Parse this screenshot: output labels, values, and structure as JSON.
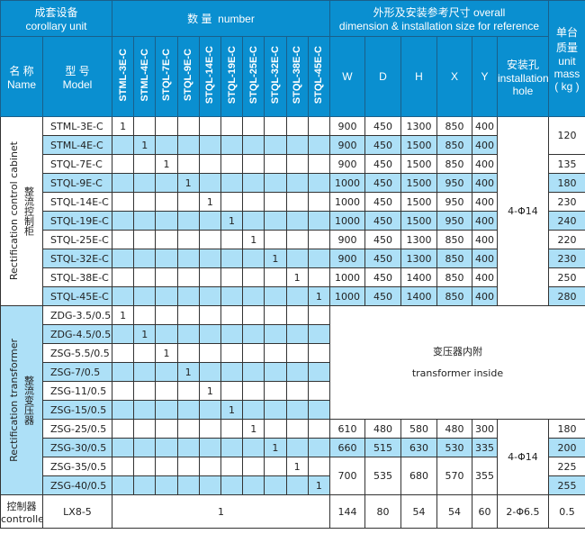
{
  "header": {
    "unit_zh": "成套设备",
    "unit_en": "corollary unit",
    "number_zh": "数 量",
    "number_en": "number",
    "dim_line1": "外形及安装参考尺寸 overall",
    "dim_line2": "dimension & installation size for reference",
    "mass_zh1": "单台",
    "mass_zh2": "质量",
    "mass_en1": "unit",
    "mass_en2": "mass",
    "mass_unit": "( kg )",
    "name_zh": "名 称",
    "name_en": "Name",
    "model_zh": "型 号",
    "model_en": "Model",
    "qty_cols": [
      "STML-3E-C",
      "STML-4E-C",
      "STQL-7E-C",
      "STQL-9E-C",
      "STQL-14E-C",
      "STQL-19E-C",
      "STQL-25E-C",
      "STQL-32E-C",
      "STQL-38E-C",
      "STQL-45E-C"
    ],
    "dim_cols": [
      "W",
      "D",
      "H",
      "X",
      "Y"
    ],
    "hole_zh": "安装孔",
    "hole_en1": "installation",
    "hole_en2": "hole"
  },
  "cabinet": {
    "name_en": "Rectification control cabinet",
    "name_zh": "整流控制柜",
    "hole": "4-Φ14",
    "rows": [
      {
        "model": "STML-3E-C",
        "qty": "1",
        "dims": [
          "900",
          "450",
          "1300",
          "850",
          "400"
        ]
      },
      {
        "model": "STML-4E-C",
        "qty": "1",
        "dims": [
          "900",
          "450",
          "1500",
          "850",
          "400"
        ]
      },
      {
        "model": "STQL-7E-C",
        "qty": "1",
        "dims": [
          "900",
          "450",
          "1500",
          "850",
          "400"
        ]
      },
      {
        "model": "STQL-9E-C",
        "qty": "1",
        "dims": [
          "1000",
          "450",
          "1500",
          "950",
          "400"
        ]
      },
      {
        "model": "STQL-14E-C",
        "qty": "1",
        "dims": [
          "1000",
          "450",
          "1500",
          "950",
          "400"
        ]
      },
      {
        "model": "STQL-19E-C",
        "qty": "1",
        "dims": [
          "1000",
          "450",
          "1500",
          "950",
          "400"
        ]
      },
      {
        "model": "STQL-25E-C",
        "qty": "1",
        "dims": [
          "900",
          "450",
          "1300",
          "850",
          "400"
        ]
      },
      {
        "model": "STQL-32E-C",
        "qty": "1",
        "dims": [
          "900",
          "450",
          "1300",
          "850",
          "400"
        ]
      },
      {
        "model": "STQL-38E-C",
        "qty": "1",
        "dims": [
          "1000",
          "450",
          "1400",
          "850",
          "400"
        ]
      },
      {
        "model": "STQL-45E-C",
        "qty": "1",
        "dims": [
          "1000",
          "450",
          "1400",
          "850",
          "400"
        ]
      }
    ],
    "mass": [
      "120",
      "135",
      "180",
      "230",
      "240",
      "220",
      "230",
      "250",
      "280"
    ]
  },
  "transformer": {
    "name_en": "Rectification transformer",
    "name_zh": "整流变压器",
    "note_zh": "变压器内附",
    "note_en": "transformer inside",
    "hole": "4-Φ14",
    "models": [
      "ZDG-3.5/0.5",
      "ZDG-4.5/0.5",
      "ZSG-5.5/0.5",
      "ZSG-7/0.5",
      "ZSG-11/0.5",
      "ZSG-15/0.5",
      "ZSG-25/0.5",
      "ZSG-30/0.5",
      "ZSG-35/0.5",
      "ZSG-40/0.5"
    ],
    "qty": "1",
    "dims": [
      [
        "610",
        "480",
        "580",
        "480",
        "300"
      ],
      [
        "660",
        "515",
        "630",
        "530",
        "335"
      ],
      [
        "700",
        "535",
        "680",
        "570",
        "355"
      ]
    ],
    "mass": [
      "180",
      "200",
      "225",
      "255"
    ]
  },
  "controller": {
    "name_zh": "控制器",
    "name_en": "controller",
    "model": "LX8-5",
    "qty": "1",
    "dims": [
      "144",
      "80",
      "54",
      "54",
      "60"
    ],
    "hole": "2-Φ6.5",
    "mass": "0.5"
  },
  "colors": {
    "header": "#0a8fd0",
    "stripe": "#ade0f7",
    "border": "#333333"
  }
}
